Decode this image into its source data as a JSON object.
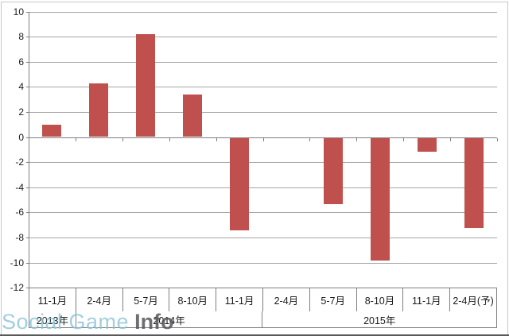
{
  "chart_data": {
    "type": "bar",
    "title": "",
    "xlabel": "",
    "ylabel": "",
    "categories": [
      "11-1月",
      "2-4月",
      "5-7月",
      "8-10月",
      "11-1月",
      "2-4月",
      "5-7月",
      "8-10月",
      "11-1月",
      "2-4月(予)"
    ],
    "values": [
      1.0,
      4.3,
      8.2,
      3.4,
      -7.4,
      0,
      -5.3,
      -9.8,
      -1.1,
      -7.2
    ],
    "year_groups": [
      {
        "label": "2013年",
        "span": 1
      },
      {
        "label": "2014年",
        "span": 4
      },
      {
        "label": "2015年",
        "span": 5
      }
    ],
    "ylim": [
      -12,
      10
    ],
    "y_tick_step": 2,
    "y_tick_labels": [
      "10",
      "8",
      "6",
      "4",
      "2",
      "0",
      "-2",
      "-4",
      "-6",
      "-8",
      "-10",
      "-12"
    ],
    "grid": true,
    "legend": false,
    "bar_color": "#C0504D",
    "gridline_color": "#A6A6A6",
    "axis_color": "#7F7F7F",
    "label_color": "#1A1A1A"
  },
  "watermark": {
    "brand_light": "Social Game",
    "brand_bold": "Info",
    "color_light": "#8CC2D8",
    "color_bold": "#56575A"
  },
  "footer_rule_color": "#58595B"
}
